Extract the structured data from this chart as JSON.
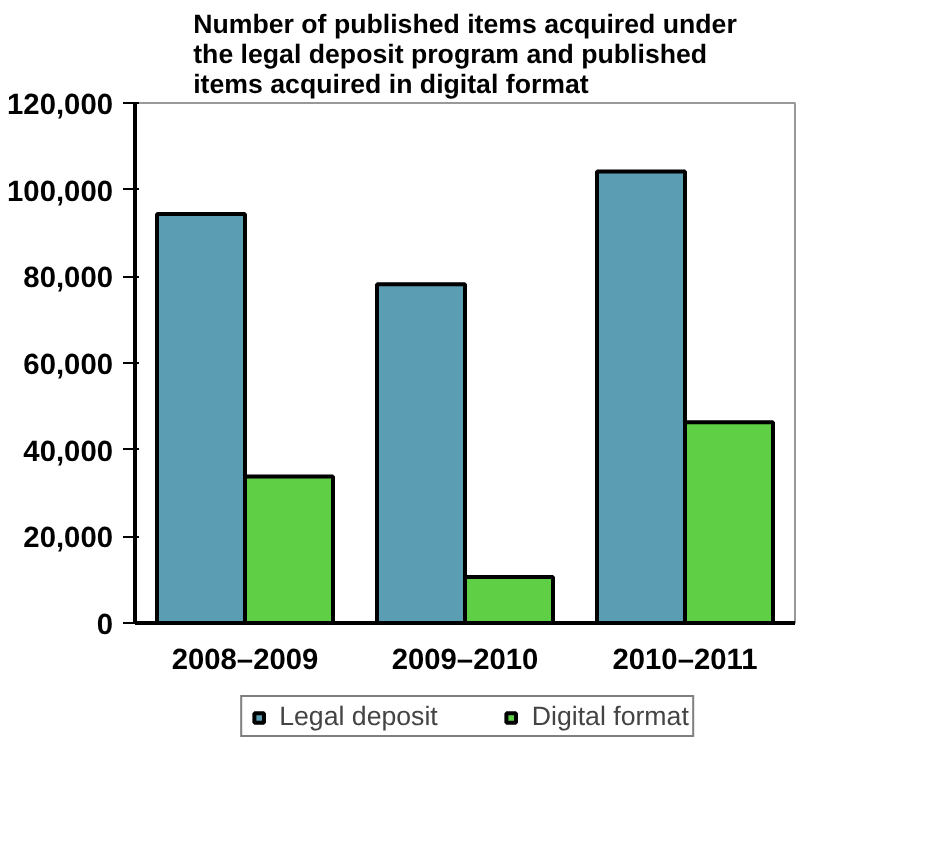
{
  "chart_data": {
    "type": "bar",
    "title": "Number of published items acquired under the legal deposit program and published items acquired in digital format",
    "categories": [
      "2008–2009",
      "2009–2010",
      "2010–2011"
    ],
    "series": [
      {
        "name": "Legal deposit",
        "color": "#5b9db2",
        "values": [
          94400,
          78200,
          104200
        ]
      },
      {
        "name": "Digital format",
        "color": "#5fcf45",
        "values": [
          33800,
          10600,
          46300
        ]
      }
    ],
    "ylim": [
      0,
      120000
    ],
    "yticks": [
      {
        "value": 0,
        "label": "0"
      },
      {
        "value": 20000,
        "label": "20,000"
      },
      {
        "value": 40000,
        "label": "40,000"
      },
      {
        "value": 60000,
        "label": "60,000"
      },
      {
        "value": 80000,
        "label": "80,000"
      },
      {
        "value": 100000,
        "label": "100,000"
      },
      {
        "value": 120000,
        "label": "120,000"
      }
    ],
    "grid": false,
    "legend": "bottom"
  }
}
